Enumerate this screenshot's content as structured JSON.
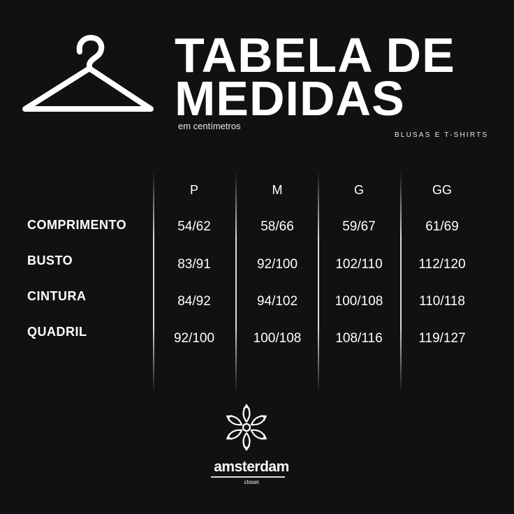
{
  "header": {
    "title_line1": "TABELA DE",
    "title_line2": "MEDIDAS",
    "subtitle": "em centímetros",
    "category": "BLUSAS E T-SHIRTS",
    "icon": "hanger-icon"
  },
  "table": {
    "columns": [
      "P",
      "M",
      "G",
      "GG"
    ],
    "rows": [
      {
        "label": "COMPRIMENTO",
        "values": [
          "54/62",
          "58/66",
          "59/67",
          "61/69"
        ]
      },
      {
        "label": "BUSTO",
        "values": [
          "83/91",
          "92/100",
          "102/110",
          "112/120"
        ]
      },
      {
        "label": "CINTURA",
        "values": [
          "84/92",
          "94/102",
          "100/108",
          "110/118"
        ]
      },
      {
        "label": "QUADRIL",
        "values": [
          "92/100",
          "100/108",
          "108/116",
          "119/127"
        ]
      }
    ]
  },
  "brand": {
    "name": "amsterdam",
    "tagline": "closet",
    "icon": "snowflake-logo-icon"
  },
  "colors": {
    "background": "#111112",
    "text": "#ffffff"
  }
}
